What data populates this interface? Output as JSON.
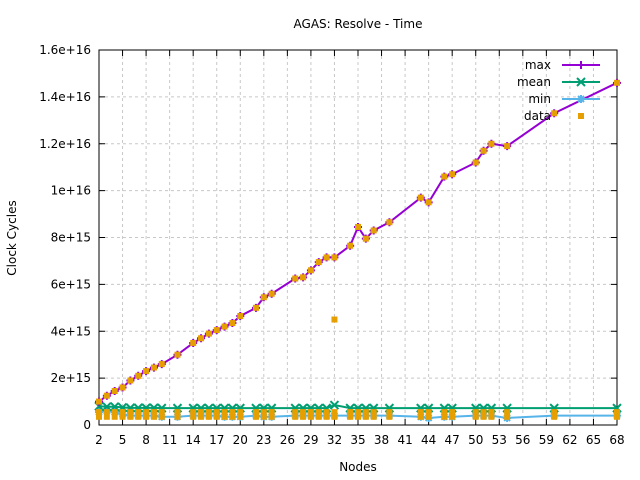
{
  "chart_data": {
    "type": "line",
    "title": "AGAS: Resolve - Time",
    "xlabel": "Nodes",
    "ylabel": "Clock Cycles",
    "xlim": [
      2,
      68
    ],
    "ylim": [
      0,
      1.6e+16
    ],
    "grid": true,
    "legend_position": "top-right",
    "x_ticks": [
      2,
      5,
      8,
      11,
      14,
      17,
      20,
      23,
      26,
      29,
      32,
      35,
      38,
      41,
      44,
      47,
      50,
      53,
      56,
      59,
      62,
      65,
      68
    ],
    "y_ticks": [
      {
        "v": 0,
        "label": "0"
      },
      {
        "v": 2000000000000000.0,
        "label": "2e+15"
      },
      {
        "v": 4000000000000000.0,
        "label": "4e+15"
      },
      {
        "v": 6000000000000000.0,
        "label": "6e+15"
      },
      {
        "v": 8000000000000000.0,
        "label": "8e+15"
      },
      {
        "v": 1e+16,
        "label": "1e+16"
      },
      {
        "v": 1.2e+16,
        "label": "1.2e+16"
      },
      {
        "v": 1.4e+16,
        "label": "1.4e+16"
      },
      {
        "v": 1.6e+16,
        "label": "1.6e+16"
      }
    ],
    "x": [
      2,
      3,
      4,
      5,
      6,
      7,
      8,
      9,
      10,
      12,
      14,
      15,
      16,
      17,
      18,
      19,
      20,
      22,
      23,
      24,
      27,
      28,
      29,
      30,
      31,
      32,
      34,
      35,
      36,
      37,
      39,
      43,
      44,
      46,
      47,
      50,
      51,
      52,
      54,
      60,
      68
    ],
    "series": [
      {
        "name": "max",
        "color": "#9400d3",
        "marker": "plus",
        "values": [
          1000000000000000.0,
          1250000000000000.0,
          1450000000000000.0,
          1600000000000000.0,
          1900000000000000.0,
          2100000000000000.0,
          2300000000000000.0,
          2450000000000000.0,
          2600000000000000.0,
          3000000000000000.0,
          3500000000000000.0,
          3700000000000000.0,
          3900000000000000.0,
          4050000000000000.0,
          4200000000000000.0,
          4350000000000000.0,
          4650000000000000.0,
          5000000000000000.0,
          5450000000000000.0,
          5600000000000000.0,
          6250000000000000.0,
          6300000000000000.0,
          6600000000000000.0,
          6950000000000000.0,
          7150000000000000.0,
          7150000000000000.0,
          7650000000000000.0,
          8450000000000000.0,
          7950000000000000.0,
          8300000000000000.0,
          8650000000000000.0,
          9700000000000000.0,
          9500000000000000.0,
          1.06e+16,
          1.07e+16,
          1.12e+16,
          1.17e+16,
          1.2e+16,
          1.19e+16,
          1.33e+16,
          1.46e+16
        ]
      },
      {
        "name": "mean",
        "color": "#009e73",
        "marker": "x",
        "values": [
          800000000000000.0,
          780000000000000.0,
          780000000000000.0,
          750000000000000.0,
          730000000000000.0,
          730000000000000.0,
          730000000000000.0,
          730000000000000.0,
          720000000000000.0,
          720000000000000.0,
          720000000000000.0,
          720000000000000.0,
          720000000000000.0,
          720000000000000.0,
          720000000000000.0,
          720000000000000.0,
          720000000000000.0,
          720000000000000.0,
          720000000000000.0,
          720000000000000.0,
          720000000000000.0,
          720000000000000.0,
          720000000000000.0,
          720000000000000.0,
          720000000000000.0,
          850000000000000.0,
          720000000000000.0,
          720000000000000.0,
          720000000000000.0,
          720000000000000.0,
          720000000000000.0,
          720000000000000.0,
          720000000000000.0,
          720000000000000.0,
          720000000000000.0,
          720000000000000.0,
          720000000000000.0,
          720000000000000.0,
          720000000000000.0,
          720000000000000.0,
          720000000000000.0
        ]
      },
      {
        "name": "min",
        "color": "#56b4e9",
        "marker": "star",
        "values": [
          550000000000000.0,
          600000000000000.0,
          550000000000000.0,
          450000000000000.0,
          400000000000000.0,
          400000000000000.0,
          400000000000000.0,
          400000000000000.0,
          350000000000000.0,
          350000000000000.0,
          400000000000000.0,
          400000000000000.0,
          400000000000000.0,
          400000000000000.0,
          350000000000000.0,
          350000000000000.0,
          350000000000000.0,
          400000000000000.0,
          350000000000000.0,
          350000000000000.0,
          400000000000000.0,
          400000000000000.0,
          400000000000000.0,
          400000000000000.0,
          400000000000000.0,
          400000000000000.0,
          400000000000000.0,
          400000000000000.0,
          400000000000000.0,
          400000000000000.0,
          400000000000000.0,
          350000000000000.0,
          300000000000000.0,
          350000000000000.0,
          350000000000000.0,
          400000000000000.0,
          400000000000000.0,
          400000000000000.0,
          300000000000000.0,
          400000000000000.0,
          400000000000000.0
        ]
      }
    ],
    "data_points": {
      "name": "data",
      "color": "#e69f00",
      "low_band": [
        350000000000000.0,
        550000000000000.0
      ],
      "outliers": [
        [
          32,
          4500000000000000.0
        ]
      ]
    }
  }
}
